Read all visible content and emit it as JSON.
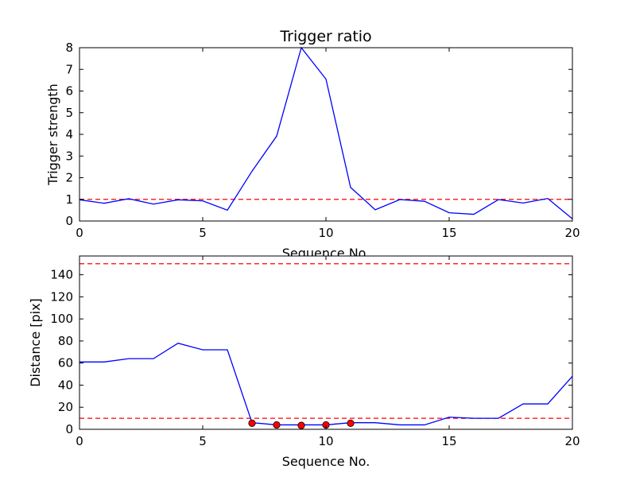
{
  "chart_data": [
    {
      "type": "line",
      "title": "Trigger ratio",
      "xlabel": "Sequence No.",
      "ylabel": "Trigger strength",
      "xlim": [
        0,
        20
      ],
      "ylim": [
        0,
        8
      ],
      "xticks": [
        "0",
        "5",
        "10",
        "15",
        "20"
      ],
      "yticks": [
        "0",
        "1",
        "2",
        "3",
        "4",
        "5",
        "6",
        "7",
        "8"
      ],
      "grid": false,
      "series": [
        {
          "color": "#0000ff",
          "x": [
            0,
            1,
            2,
            3,
            4,
            5,
            6,
            7,
            8,
            9,
            10,
            11,
            12,
            13,
            14,
            15,
            16,
            17,
            18,
            19,
            20
          ],
          "y": [
            0.98,
            0.82,
            1.03,
            0.78,
            0.98,
            0.93,
            0.5,
            2.3,
            3.92,
            8.0,
            6.55,
            1.55,
            0.52,
            0.99,
            0.91,
            0.38,
            0.31,
            0.99,
            0.83,
            1.04,
            0.1
          ]
        }
      ],
      "reference_lines": [
        {
          "y": 1,
          "color": "#ff0000",
          "style": "dashed"
        }
      ]
    },
    {
      "type": "line",
      "title": "",
      "xlabel": "Sequence No.",
      "ylabel": "Distance [pix]",
      "xlim": [
        0,
        20
      ],
      "ylim": [
        0,
        157
      ],
      "xticks": [
        "0",
        "5",
        "10",
        "15",
        "20"
      ],
      "yticks": [
        "0",
        "20",
        "40",
        "60",
        "80",
        "100",
        "120",
        "140"
      ],
      "grid": false,
      "series": [
        {
          "color": "#0000ff",
          "x": [
            0,
            1,
            2,
            3,
            4,
            5,
            6,
            7,
            8,
            9,
            10,
            11,
            12,
            13,
            14,
            15,
            16,
            17,
            18,
            19,
            20
          ],
          "y": [
            61,
            61,
            64,
            64,
            78,
            72,
            72,
            6,
            4,
            4,
            4,
            6,
            6,
            4,
            4,
            11,
            10,
            10,
            23,
            23,
            48
          ]
        }
      ],
      "markers": {
        "color": "#ff0000",
        "x": [
          7,
          8,
          9,
          10,
          11
        ],
        "y": [
          5.5,
          4,
          3.5,
          4,
          5.5
        ]
      },
      "reference_lines": [
        {
          "y": 150,
          "color": "#ff0000",
          "style": "dashed"
        },
        {
          "y": 10,
          "color": "#ff0000",
          "style": "dashed"
        }
      ]
    }
  ]
}
